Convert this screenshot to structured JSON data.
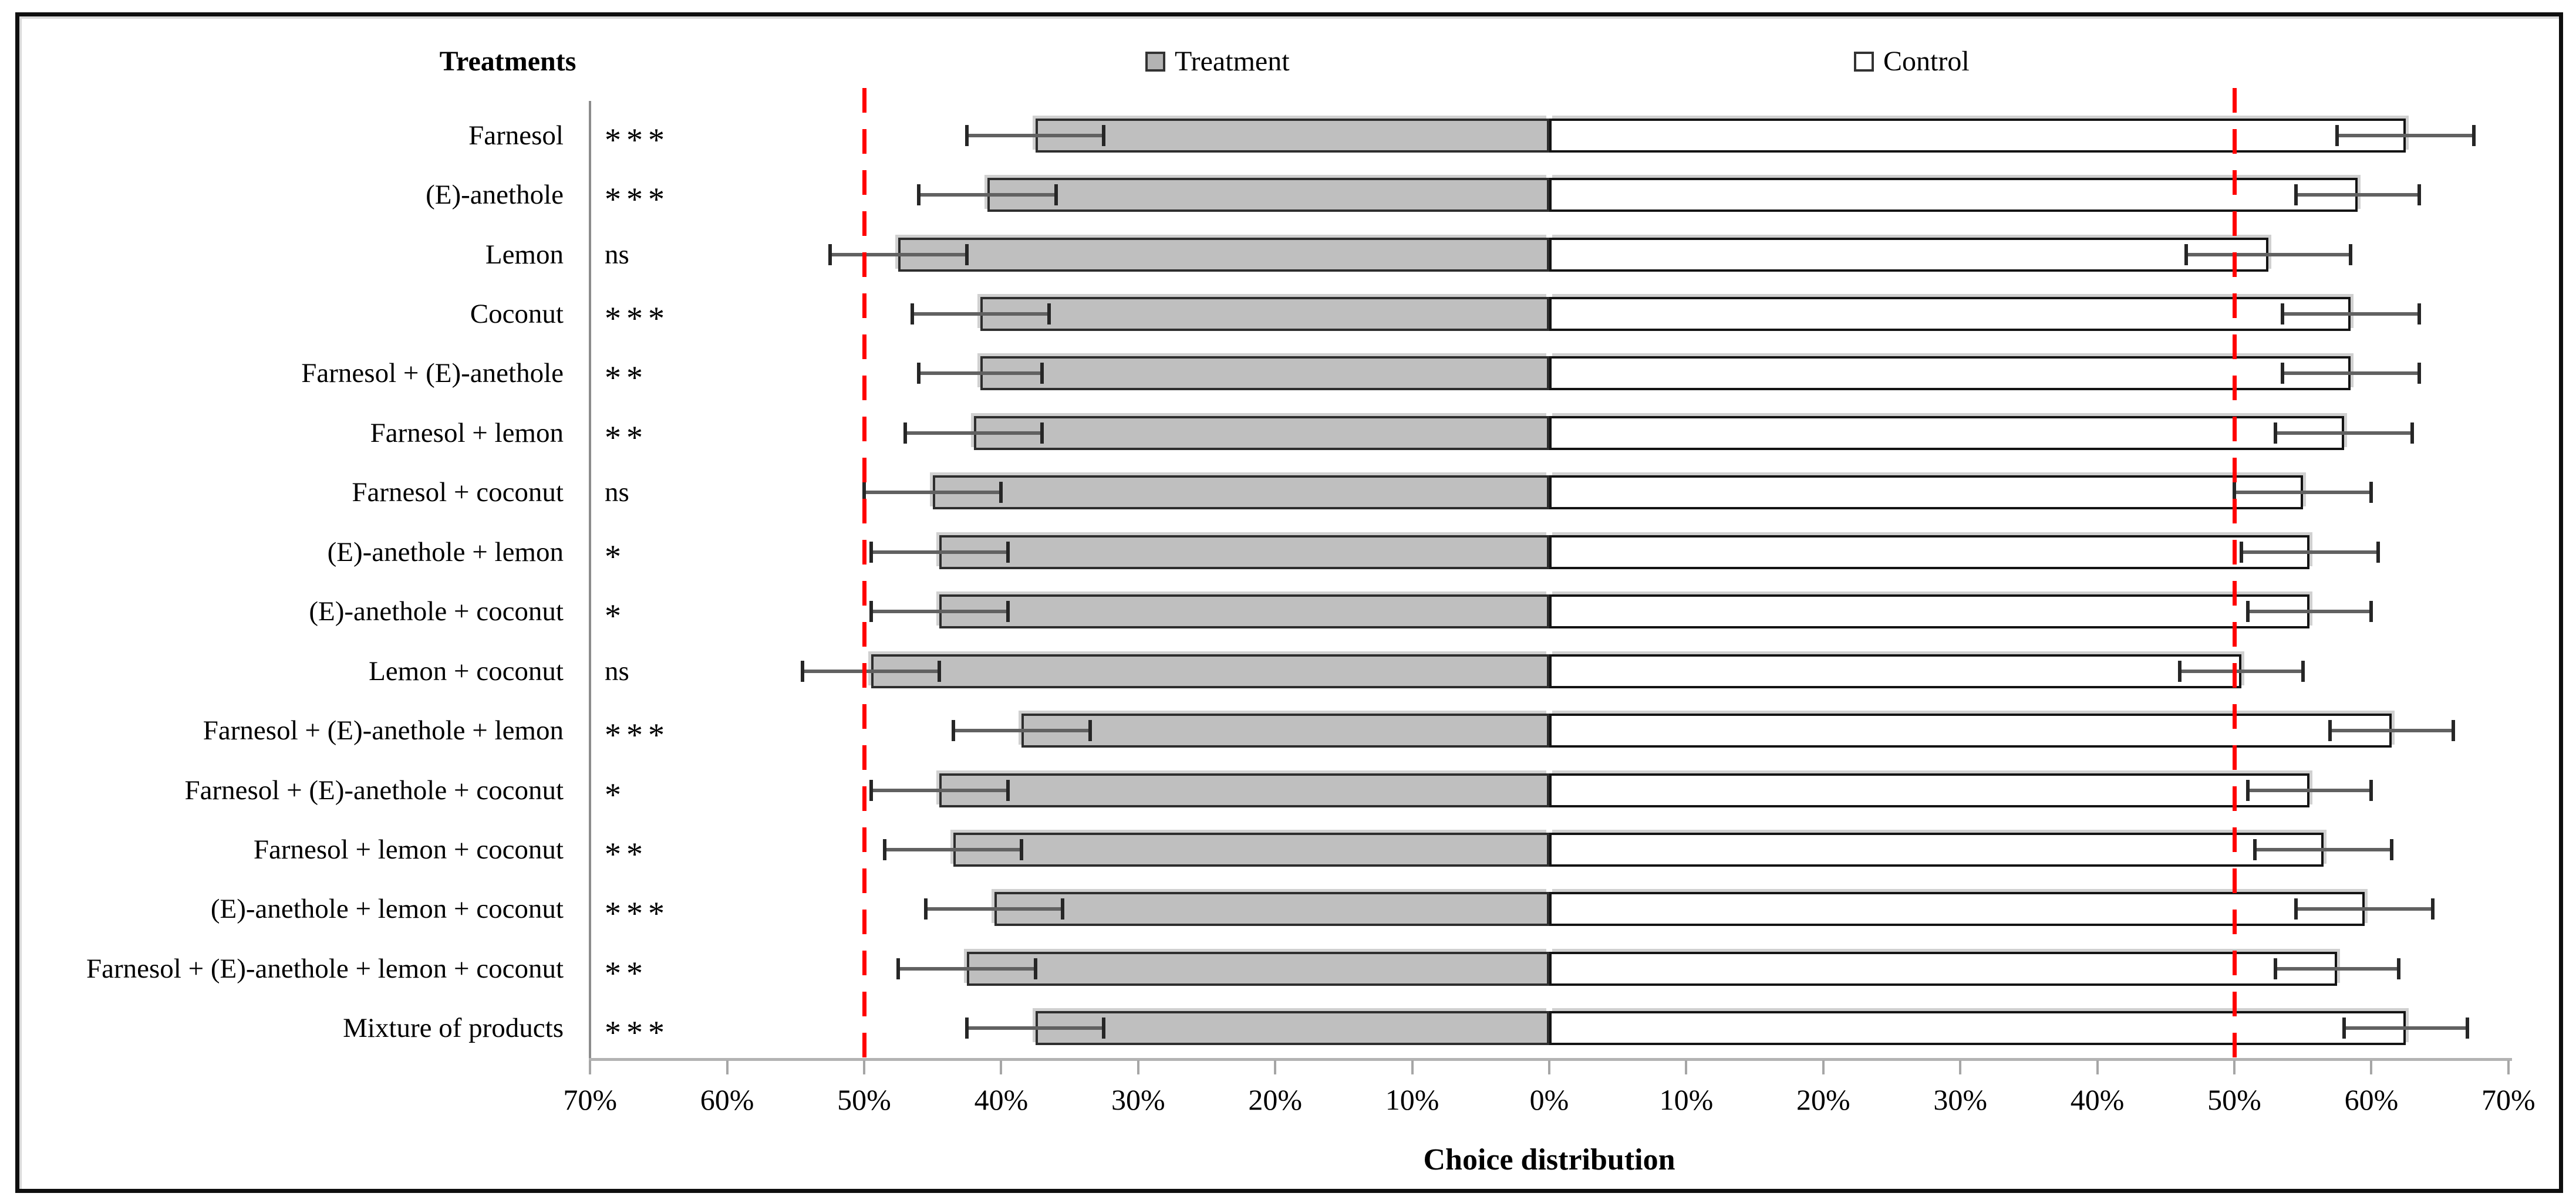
{
  "chart": {
    "y_axis_title": "Treatments",
    "x_axis_title": "Choice distribution",
    "legend": {
      "treatment": "Treatment",
      "control": "Control"
    }
  },
  "chart_data": {
    "type": "bar",
    "subtype": "diverging-horizontal-stacked-with-error-bars",
    "title": "",
    "xlabel": "Choice distribution",
    "ylabel": "Treatments",
    "axis_unit": "percent",
    "x_tick_percents": [
      -70,
      -60,
      -50,
      -40,
      -30,
      -20,
      -10,
      0,
      10,
      20,
      30,
      40,
      50,
      60,
      70
    ],
    "x_tick_labels": [
      "70%",
      "60%",
      "50%",
      "40%",
      "30%",
      "20%",
      "10%",
      "0%",
      "10%",
      "20%",
      "30%",
      "40%",
      "50%",
      "60%",
      "70%"
    ],
    "reference_lines_percent": [
      -50,
      50
    ],
    "grid": false,
    "legend_entries": [
      "Treatment",
      "Control"
    ],
    "legend_position": "top",
    "colors": {
      "treatment_fill": "#bfbfbf",
      "control_fill": "#ffffff",
      "reference_line": "#ff0000"
    },
    "rows": [
      {
        "label": "Farnesol",
        "significance": "***",
        "treatment_pct": 37.5,
        "treatment_err": 5,
        "control_pct": 62.5,
        "control_err": 5
      },
      {
        "label": "(E)-anethole",
        "significance": "***",
        "treatment_pct": 41,
        "treatment_err": 5,
        "control_pct": 59,
        "control_err": 4.5
      },
      {
        "label": "Lemon",
        "significance": "ns",
        "treatment_pct": 47.5,
        "treatment_err": 5,
        "control_pct": 52.5,
        "control_err": 6
      },
      {
        "label": "Coconut",
        "significance": "***",
        "treatment_pct": 41.5,
        "treatment_err": 5,
        "control_pct": 58.5,
        "control_err": 5
      },
      {
        "label": "Farnesol + (E)-anethole",
        "significance": "**",
        "treatment_pct": 41.5,
        "treatment_err": 4.5,
        "control_pct": 58.5,
        "control_err": 5
      },
      {
        "label": "Farnesol + lemon",
        "significance": "**",
        "treatment_pct": 42,
        "treatment_err": 5,
        "control_pct": 58,
        "control_err": 5
      },
      {
        "label": "Farnesol + coconut",
        "significance": "ns",
        "treatment_pct": 45,
        "treatment_err": 5,
        "control_pct": 55,
        "control_err": 5
      },
      {
        "label": "(E)-anethole + lemon",
        "significance": "*",
        "treatment_pct": 44.5,
        "treatment_err": 5,
        "control_pct": 55.5,
        "control_err": 5
      },
      {
        "label": "(E)-anethole + coconut",
        "significance": "*",
        "treatment_pct": 44.5,
        "treatment_err": 5,
        "control_pct": 55.5,
        "control_err": 4.5
      },
      {
        "label": "Lemon + coconut",
        "significance": "ns",
        "treatment_pct": 49.5,
        "treatment_err": 5,
        "control_pct": 50.5,
        "control_err": 4.5
      },
      {
        "label": "Farnesol + (E)-anethole + lemon",
        "significance": "***",
        "treatment_pct": 38.5,
        "treatment_err": 5,
        "control_pct": 61.5,
        "control_err": 4.5
      },
      {
        "label": "Farnesol + (E)-anethole + coconut",
        "significance": "*",
        "treatment_pct": 44.5,
        "treatment_err": 5,
        "control_pct": 55.5,
        "control_err": 4.5
      },
      {
        "label": "Farnesol + lemon + coconut",
        "significance": "**",
        "treatment_pct": 43.5,
        "treatment_err": 5,
        "control_pct": 56.5,
        "control_err": 5
      },
      {
        "label": "(E)-anethole + lemon + coconut",
        "significance": "***",
        "treatment_pct": 40.5,
        "treatment_err": 5,
        "control_pct": 59.5,
        "control_err": 5
      },
      {
        "label": "Farnesol + (E)-anethole + lemon + coconut",
        "significance": "**",
        "treatment_pct": 42.5,
        "treatment_err": 5,
        "control_pct": 57.5,
        "control_err": 4.5
      },
      {
        "label": "Mixture of products",
        "significance": "***",
        "treatment_pct": 37.5,
        "treatment_err": 5,
        "control_pct": 62.5,
        "control_err": 4.5
      }
    ]
  }
}
